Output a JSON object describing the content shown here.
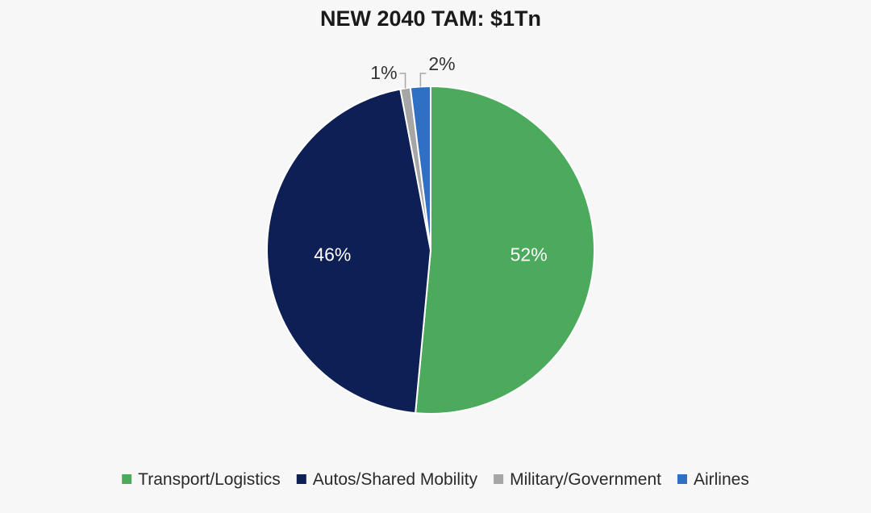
{
  "chart_data": {
    "type": "pie",
    "title": "NEW 2040 TAM: $1Tn",
    "categories": [
      "Transport/Logistics",
      "Autos/Shared Mobility",
      "Military/Government",
      "Airlines"
    ],
    "values": [
      52,
      46,
      1,
      2
    ],
    "data_labels": [
      "52%",
      "46%",
      "1%",
      "2%"
    ],
    "colors": [
      "#4caa5c",
      "#0d1f55",
      "#a6a6a6",
      "#2f6fc4"
    ],
    "start_angle_deg": 0,
    "direction": "clockwise",
    "legend_position": "bottom",
    "label_placement": [
      "inside",
      "inside",
      "outside-leader",
      "outside-leader"
    ]
  }
}
